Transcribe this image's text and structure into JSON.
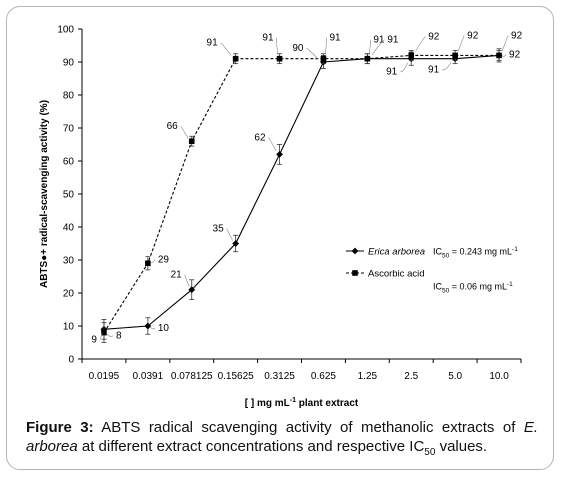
{
  "chart_data": {
    "type": "line",
    "categories": [
      "0.0195",
      "0.0391",
      "0.078125",
      "0.15625",
      "0.3125",
      "0.625",
      "1.25",
      "2.5",
      "5.0",
      "10.0"
    ],
    "ylabel": "ABTS●+ radical-scavenging activity (%)",
    "xlabel_pre": "[ ] mg mL",
    "xlabel_sup": "-1",
    "xlabel_post": " plant extract",
    "ylim": [
      0,
      100
    ],
    "yticks": [
      "0",
      "10",
      "20",
      "30",
      "40",
      "50",
      "60",
      "70",
      "80",
      "90",
      "100"
    ],
    "series": [
      {
        "name": "Erica arborea",
        "line": "solid",
        "marker": "diamond",
        "values": [
          9,
          10,
          21,
          35,
          62,
          90,
          91,
          91,
          91,
          92
        ],
        "errors": [
          3,
          2.5,
          3,
          2.5,
          3,
          2,
          1.5,
          2,
          1.5,
          2
        ],
        "labels": [
          "9",
          "10",
          "21",
          "35",
          "62",
          "90",
          "91",
          "91",
          "91",
          "92"
        ],
        "ic50_pre": "IC",
        "ic50_sub": "50",
        "ic50_val": " = 0.243 mg mL",
        "ic50_sup": "-1"
      },
      {
        "name": "Ascorbic acid",
        "line": "dashed",
        "marker": "square",
        "values": [
          8,
          29,
          66,
          91,
          91,
          91,
          91,
          92,
          92,
          92
        ],
        "errors": [
          3,
          2,
          1.5,
          1.5,
          1.5,
          1.5,
          1.5,
          1.5,
          1.5,
          1.5
        ],
        "labels": [
          "8",
          "29",
          "66",
          "91",
          "91",
          "91",
          "91",
          "92",
          "92",
          "92"
        ],
        "ic50_pre": "IC",
        "ic50_sub": "50",
        "ic50_val": " = 0.06 mg mL",
        "ic50_sup": "-1"
      }
    ]
  },
  "caption": {
    "figure_label": "Figure 3:",
    "text_a": " ABTS radical scavenging activity of methanolic extracts of ",
    "species_italic": "E. arborea",
    "text_b": " at different extract concentrations and respective IC",
    "sub": "50",
    "text_c": " values."
  }
}
